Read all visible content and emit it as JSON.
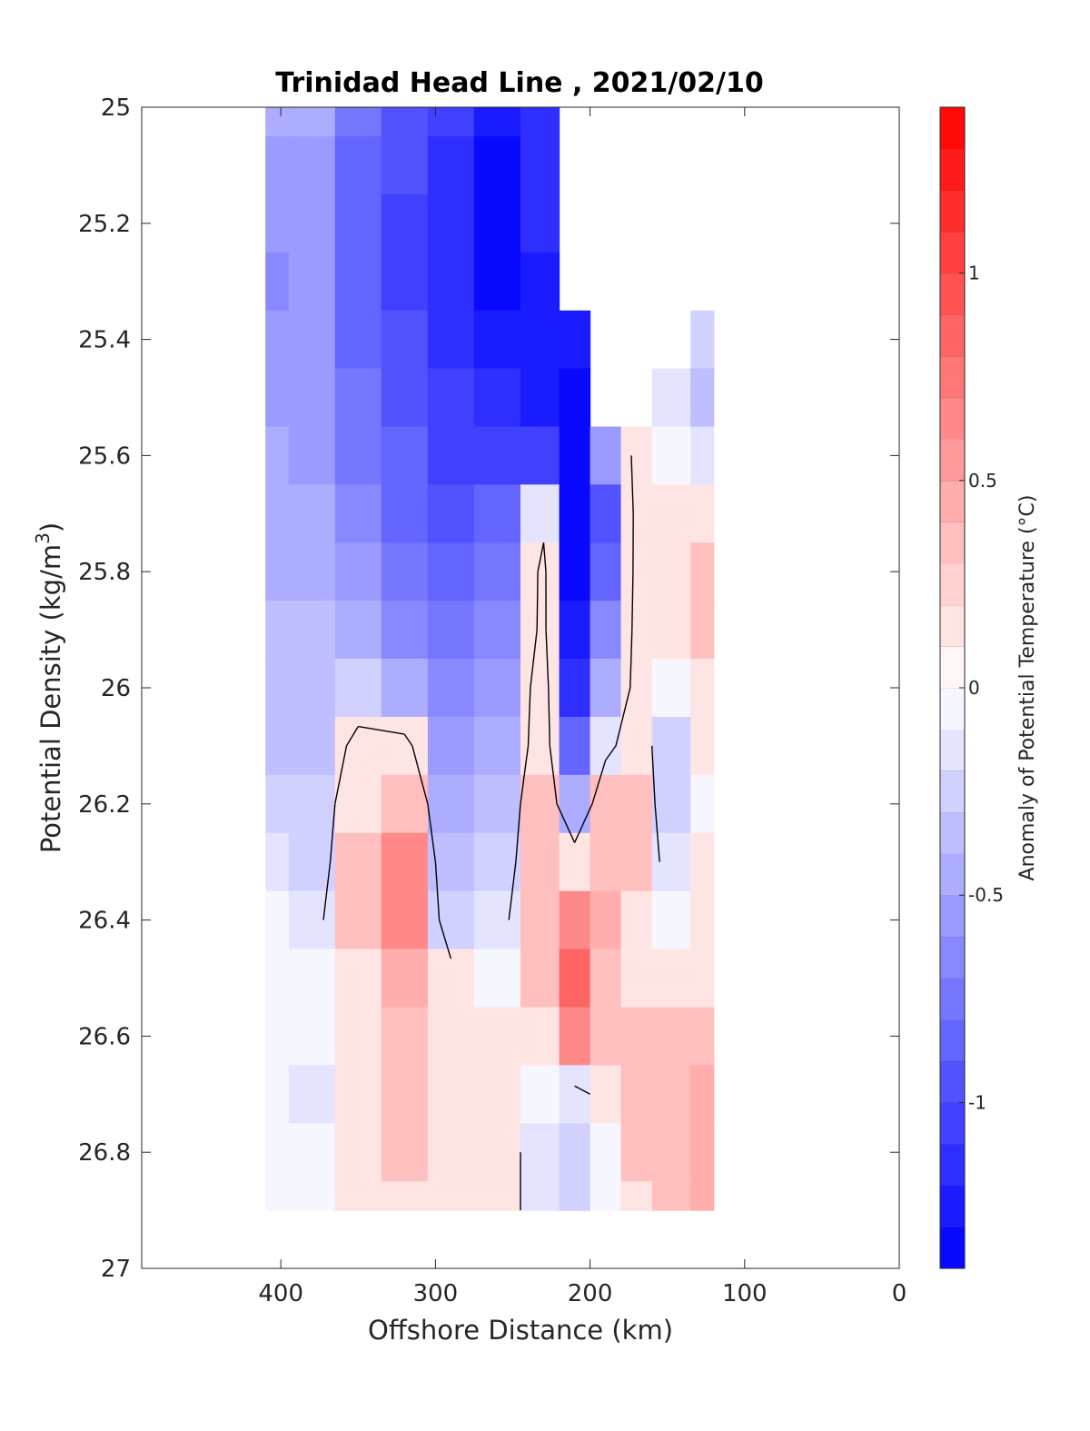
{
  "chart_data": {
    "type": "heatmap",
    "title": "Trinidad Head Line , 2021/02/10",
    "xlabel": "Offshore Distance (km)",
    "ylabel_main": "Potential Density (kg/m",
    "ylabel_sup": "3",
    "ylabel_close": ")",
    "colorbar_label": "Anomaly of Potential Temperature (°C)",
    "xlim": [
      490,
      0
    ],
    "x_reversed": true,
    "ylim": [
      25,
      27
    ],
    "y_reversed": true,
    "x_ticks": [
      400,
      300,
      200,
      100,
      0
    ],
    "x_tick_labels": [
      "400",
      "300",
      "200",
      "100",
      "0"
    ],
    "y_ticks": [
      25,
      25.2,
      25.4,
      25.6,
      25.8,
      26,
      26.2,
      26.4,
      26.6,
      26.8,
      27
    ],
    "y_tick_labels": [
      "25",
      "25.2",
      "25.4",
      "25.6",
      "25.8",
      "26",
      "26.2",
      "26.4",
      "26.6",
      "26.8",
      "27"
    ],
    "color_range": [
      -1.4,
      1.4
    ],
    "color_step": 0.1,
    "colorbar_ticks": [
      1,
      0.5,
      0,
      -0.5,
      -1
    ],
    "colorbar_tick_labels": [
      "1",
      "0.5",
      "0",
      "-0.5",
      "-1"
    ],
    "colormap": {
      "negative": "#0000ff",
      "zero": "#ffffff",
      "positive": "#ff0000"
    },
    "contour_level": 0,
    "grid": false,
    "x": [
      410,
      380,
      350,
      320,
      290,
      260,
      230,
      210,
      190,
      170,
      150,
      120
    ],
    "y": [
      25.0,
      25.1,
      25.2,
      25.3,
      25.4,
      25.5,
      25.6,
      25.7,
      25.8,
      25.9,
      26.0,
      26.1,
      26.2,
      26.3,
      26.4,
      26.5,
      26.6,
      26.7,
      26.8,
      26.9
    ],
    "z": [
      [
        -0.4,
        -0.4,
        -0.7,
        -0.9,
        -1.0,
        -1.2,
        -1.1,
        null,
        null,
        null,
        null,
        null
      ],
      [
        -0.5,
        -0.5,
        -0.8,
        -0.9,
        -1.1,
        -1.3,
        -1.1,
        null,
        null,
        null,
        null,
        null
      ],
      [
        -0.5,
        -0.5,
        -0.8,
        -1.0,
        -1.1,
        -1.3,
        -1.1,
        null,
        null,
        null,
        null,
        null
      ],
      [
        -0.6,
        -0.5,
        -0.8,
        -1.0,
        -1.1,
        -1.3,
        -1.2,
        null,
        null,
        null,
        null,
        null
      ],
      [
        -0.5,
        -0.5,
        -0.8,
        -0.9,
        -1.1,
        -1.2,
        -1.2,
        -1.2,
        null,
        null,
        null,
        -0.2
      ],
      [
        -0.5,
        -0.5,
        -0.7,
        -0.9,
        -1.0,
        -1.1,
        -1.2,
        -1.3,
        null,
        null,
        -0.1,
        -0.3
      ],
      [
        -0.4,
        -0.5,
        -0.7,
        -0.8,
        -1.0,
        -1.0,
        -1.0,
        -1.3,
        -0.5,
        0.1,
        0.0,
        -0.1
      ],
      [
        -0.4,
        -0.4,
        -0.6,
        -0.8,
        -0.9,
        -0.8,
        -0.1,
        -1.4,
        -0.9,
        0.1,
        0.1,
        0.2
      ],
      [
        -0.4,
        -0.4,
        -0.5,
        -0.7,
        -0.8,
        -0.7,
        0.1,
        -1.3,
        -0.8,
        0.1,
        0.1,
        0.3
      ],
      [
        -0.3,
        -0.3,
        -0.4,
        -0.6,
        -0.7,
        -0.6,
        0.1,
        -1.2,
        -0.6,
        0.1,
        0.1,
        0.3
      ],
      [
        -0.3,
        -0.3,
        -0.2,
        -0.4,
        -0.6,
        -0.5,
        0.2,
        -1.1,
        -0.4,
        0.1,
        0.0,
        0.2
      ],
      [
        -0.3,
        -0.3,
        0.1,
        0.1,
        -0.5,
        -0.4,
        0.2,
        -0.8,
        -0.1,
        0.2,
        -0.2,
        0.1
      ],
      [
        -0.2,
        -0.2,
        0.2,
        0.4,
        -0.4,
        -0.3,
        0.3,
        -0.4,
        0.3,
        0.3,
        -0.2,
        0.0
      ],
      [
        -0.1,
        -0.2,
        0.3,
        0.6,
        -0.3,
        -0.2,
        0.3,
        0.2,
        0.4,
        0.3,
        -0.1,
        0.1
      ],
      [
        0.0,
        -0.1,
        0.3,
        0.6,
        -0.2,
        -0.1,
        0.3,
        0.7,
        0.5,
        0.2,
        0.0,
        0.2
      ],
      [
        0.0,
        0.0,
        0.2,
        0.5,
        0.1,
        0.0,
        0.3,
        0.9,
        0.4,
        0.2,
        0.1,
        0.2
      ],
      [
        0.0,
        0.0,
        0.1,
        0.4,
        0.2,
        0.1,
        0.2,
        0.6,
        0.3,
        0.3,
        0.3,
        0.3
      ],
      [
        0.0,
        -0.1,
        0.1,
        0.3,
        0.2,
        0.1,
        0.0,
        -0.1,
        0.1,
        0.4,
        0.3,
        0.5
      ],
      [
        0.0,
        0.0,
        0.1,
        0.3,
        0.2,
        0.1,
        -0.1,
        -0.2,
        0.0,
        0.3,
        0.3,
        0.5
      ],
      [
        0.0,
        0.0,
        0.1,
        0.2,
        0.2,
        0.1,
        -0.1,
        -0.2,
        0.0,
        0.2,
        0.3,
        0.5
      ]
    ]
  }
}
